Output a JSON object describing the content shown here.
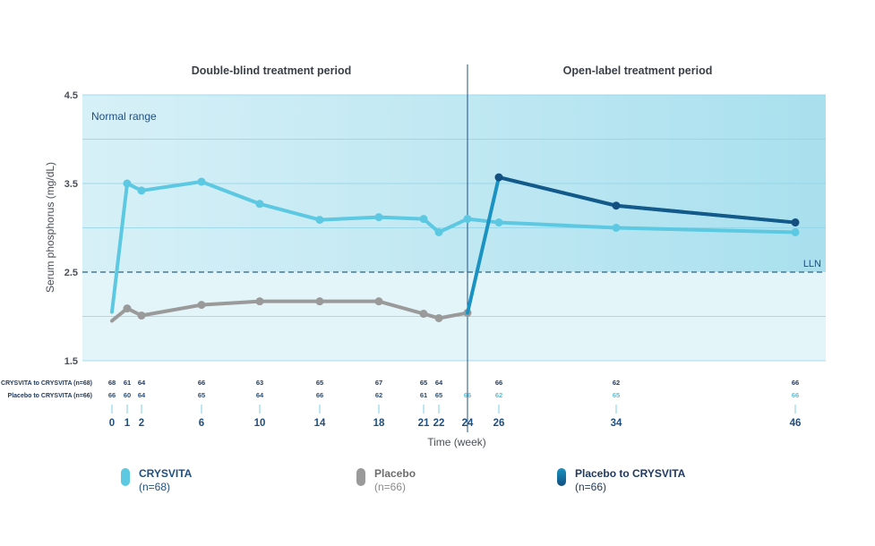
{
  "chart_data": {
    "type": "line",
    "period_labels": [
      "Double-blind treatment period",
      "Open-label treatment period"
    ],
    "band_label": "Normal range",
    "lln_label": "LLN",
    "lln_value": 2.5,
    "normal_range": [
      2.5,
      4.5
    ],
    "ylabel": "Serum phosphorus (mg/dL)",
    "xlabel": "Time (week)",
    "ylim": [
      1.5,
      4.5
    ],
    "yticks": [
      "1.5",
      "2.5",
      "3.5",
      "4.5"
    ],
    "x_ticks": [
      0,
      1,
      2,
      6,
      10,
      14,
      18,
      21,
      22,
      24,
      26,
      34,
      46
    ],
    "switch_week": 24,
    "series": [
      {
        "name": "CRYSVITA",
        "n": "(n=68)",
        "color": "#5cc8e2",
        "x": [
          0,
          1,
          2,
          6,
          10,
          14,
          18,
          21,
          22,
          24,
          26,
          34,
          46
        ],
        "values": [
          2.05,
          3.5,
          3.42,
          3.52,
          3.27,
          3.09,
          3.12,
          3.1,
          2.95,
          3.1,
          3.06,
          3.0,
          2.95
        ]
      },
      {
        "name": "Placebo",
        "n": "(n=66)",
        "color": "#9a9a9a",
        "x": [
          0,
          1,
          2,
          6,
          10,
          14,
          18,
          21,
          22,
          24
        ],
        "values": [
          1.95,
          2.09,
          2.01,
          2.13,
          2.17,
          2.17,
          2.17,
          2.03,
          1.98,
          2.04
        ]
      },
      {
        "name": "Placebo to CRYSVITA",
        "n": "(n=66)",
        "color": "#1a93c2",
        "dark_color": "#134f80",
        "x": [
          24,
          26,
          34,
          46
        ],
        "values": [
          2.04,
          3.57,
          3.25,
          3.06
        ]
      }
    ],
    "n_rows": [
      {
        "label": "CRYSVITA to CRYSVITA (n=68)",
        "x": [
          0,
          1,
          2,
          6,
          10,
          14,
          18,
          21,
          22,
          26,
          34,
          46
        ],
        "values": [
          "68",
          "61",
          "64",
          "66",
          "63",
          "65",
          "67",
          "65",
          "64",
          "66",
          "62",
          "66"
        ]
      },
      {
        "label": "Placebo to CRYSVITA (n=66)",
        "x": [
          0,
          1,
          2,
          6,
          10,
          14,
          18,
          21,
          22,
          24,
          26,
          34,
          46
        ],
        "values": [
          "66",
          "60",
          "64",
          "65",
          "64",
          "66",
          "62",
          "61",
          "65",
          "66",
          "62",
          "65",
          "66"
        ]
      }
    ]
  }
}
